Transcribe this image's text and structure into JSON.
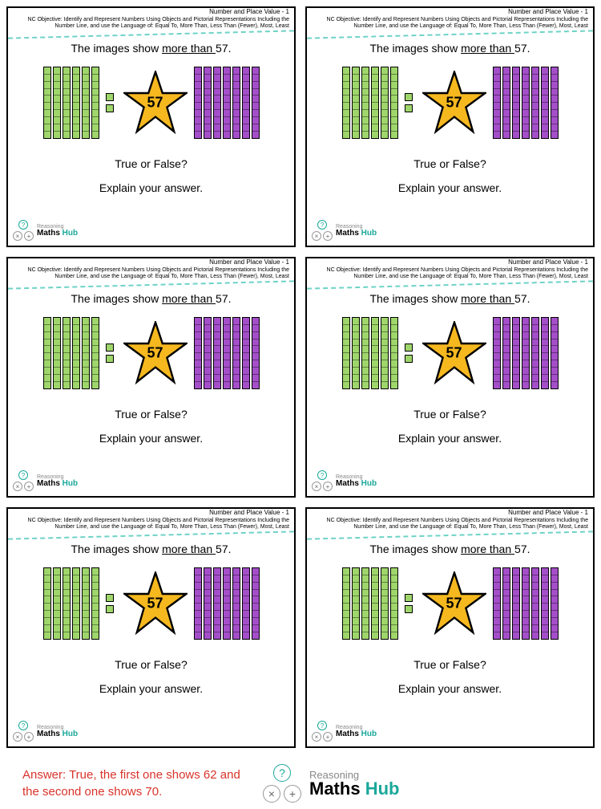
{
  "card": {
    "topic": "Number and Place Value - 1",
    "objective": "NC Objective: Identify and Represent Numbers Using Objects and Pictorial Representations Including the Number Line, and use the Language of: Equal To, More Than, Less Than (Fewer), Most, Least",
    "question_prefix": "The images show ",
    "question_phrase": "more than ",
    "question_suffix": "57.",
    "star_number": "57",
    "true_false": "True or False?",
    "explain": "Explain your answer.",
    "green_tens": 6,
    "green_ones": 2,
    "purple_tens": 7,
    "colors": {
      "green": "#9fd66b",
      "purple": "#a44fc9",
      "star_fill": "#f6b81f",
      "star_stroke": "#000000",
      "dash": "#6dd3c7"
    }
  },
  "logo": {
    "line1": "Reasoning",
    "line2a": "Maths ",
    "line2b": "Hub",
    "sym1": "?",
    "sym2": "×",
    "sym3": "+"
  },
  "answer": "Answer: True, the first one shows 62 and the second one shows 70."
}
